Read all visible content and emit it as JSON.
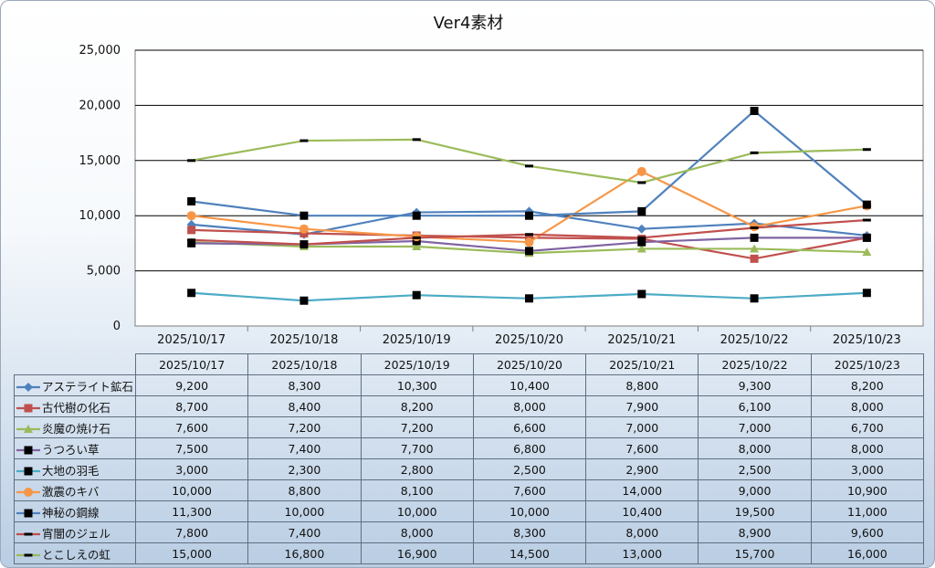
{
  "chart_data": {
    "type": "line",
    "title": "Ver4素材",
    "categories": [
      "2025/10/17",
      "2025/10/18",
      "2025/10/19",
      "2025/10/20",
      "2025/10/21",
      "2025/10/22",
      "2025/10/23"
    ],
    "yticks": [
      "0",
      "5,000",
      "10,000",
      "15,000",
      "20,000",
      "25,000"
    ],
    "ylim": [
      0,
      25000
    ],
    "grid": true,
    "legend": "data-table",
    "series": [
      {
        "name": "アステライト鉱石",
        "color": "#4f81bd",
        "marker": "diamond",
        "values": [
          9200,
          8300,
          10300,
          10400,
          8800,
          9300,
          8200
        ],
        "labels": [
          "9,200",
          "8,300",
          "10,300",
          "10,400",
          "8,800",
          "9,300",
          "8,200"
        ]
      },
      {
        "name": "古代樹の化石",
        "color": "#c0504d",
        "marker": "square",
        "values": [
          8700,
          8400,
          8200,
          8000,
          7900,
          6100,
          8000
        ],
        "labels": [
          "8,700",
          "8,400",
          "8,200",
          "8,000",
          "7,900",
          "6,100",
          "8,000"
        ]
      },
      {
        "name": "炎魔の焼け石",
        "color": "#9bbb59",
        "marker": "triangle",
        "values": [
          7600,
          7200,
          7200,
          6600,
          7000,
          7000,
          6700
        ],
        "labels": [
          "7,600",
          "7,200",
          "7,200",
          "6,600",
          "7,000",
          "7,000",
          "6,700"
        ]
      },
      {
        "name": "うつろい草",
        "color": "#8064a2",
        "marker": "square-black",
        "values": [
          7500,
          7400,
          7700,
          6800,
          7600,
          8000,
          8000
        ],
        "labels": [
          "7,500",
          "7,400",
          "7,700",
          "6,800",
          "7,600",
          "8,000",
          "8,000"
        ]
      },
      {
        "name": "大地の羽毛",
        "color": "#4bacc6",
        "marker": "square-black",
        "values": [
          3000,
          2300,
          2800,
          2500,
          2900,
          2500,
          3000
        ],
        "labels": [
          "3,000",
          "2,300",
          "2,800",
          "2,500",
          "2,900",
          "2,500",
          "3,000"
        ]
      },
      {
        "name": "激震のキバ",
        "color": "#f79646",
        "marker": "circle",
        "values": [
          10000,
          8800,
          8100,
          7600,
          14000,
          9000,
          10900
        ],
        "labels": [
          "10,000",
          "8,800",
          "8,100",
          "7,600",
          "14,000",
          "9,000",
          "10,900"
        ]
      },
      {
        "name": "神秘の鋼線",
        "color": "#4f81bd",
        "marker": "square-black",
        "values": [
          11300,
          10000,
          10000,
          10000,
          10400,
          19500,
          11000
        ],
        "labels": [
          "11,300",
          "10,000",
          "10,000",
          "10,000",
          "10,400",
          "19,500",
          "11,000"
        ]
      },
      {
        "name": "宵闇のジェル",
        "color": "#c0504d",
        "marker": "dash",
        "values": [
          7800,
          7400,
          8000,
          8300,
          8000,
          8900,
          9600
        ],
        "labels": [
          "7,800",
          "7,400",
          "8,000",
          "8,300",
          "8,000",
          "8,900",
          "9,600"
        ]
      },
      {
        "name": "とこしえの虹",
        "color": "#9bbb59",
        "marker": "dash",
        "values": [
          15000,
          16800,
          16900,
          14500,
          13000,
          15700,
          16000
        ],
        "labels": [
          "15,000",
          "16,800",
          "16,900",
          "14,500",
          "13,000",
          "15,700",
          "16,000"
        ]
      }
    ]
  }
}
